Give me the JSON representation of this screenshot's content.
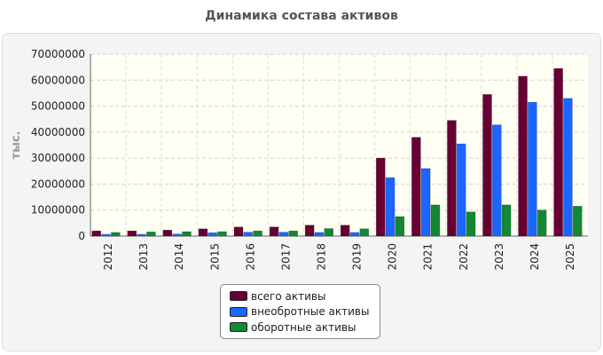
{
  "chart_data": {
    "type": "bar",
    "title": "Динамика состава активов",
    "ylabel": "тыс.",
    "xlabel": "",
    "ylim": [
      0,
      70000000
    ],
    "yticks": [
      "0",
      "10000000",
      "20000000",
      "30000000",
      "40000000",
      "50000000",
      "60000000",
      "70000000"
    ],
    "grid": true,
    "legend_position": "bottom",
    "categories": [
      "2012",
      "2013",
      "2014",
      "2015",
      "2016",
      "2017",
      "2018",
      "2019",
      "2020",
      "2021",
      "2022",
      "2023",
      "2024",
      "2025"
    ],
    "series": [
      {
        "name": "всего активы",
        "color": "#660033",
        "values": [
          2000000,
          2000000,
          2300000,
          2800000,
          3500000,
          3500000,
          4200000,
          4200000,
          30000000,
          38000000,
          44500000,
          54500000,
          61500000,
          64500000
        ]
      },
      {
        "name": "внеобротные активы",
        "color": "#1a66ff",
        "values": [
          700000,
          700000,
          800000,
          1300000,
          1500000,
          1500000,
          1400000,
          1400000,
          22500000,
          26000000,
          35500000,
          42800000,
          51500000,
          53000000
        ]
      },
      {
        "name": "оборотные активы",
        "color": "#118833",
        "values": [
          1400000,
          1600000,
          1700000,
          1700000,
          2000000,
          2000000,
          2900000,
          2800000,
          7500000,
          12000000,
          9300000,
          12000000,
          10000000,
          11500000
        ]
      }
    ]
  }
}
